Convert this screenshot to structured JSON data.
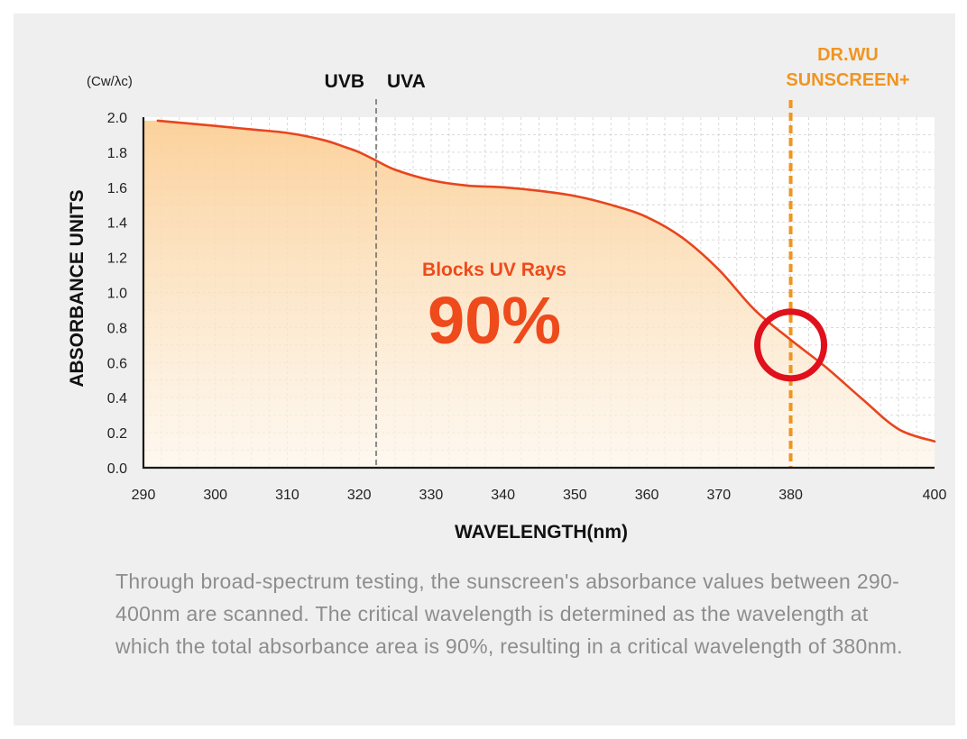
{
  "chart_data": {
    "type": "area",
    "unit_label": "(Cw/λc)",
    "ylabel": "ABSORBANCE UNITS",
    "xlabel": "WAVELENGTH(nm)",
    "xlim": [
      290,
      400
    ],
    "ylim": [
      0,
      2.0
    ],
    "x_ticks": [
      "290",
      "300",
      "310",
      "320",
      "330",
      "340",
      "350",
      "360",
      "370",
      "380",
      "400"
    ],
    "x_tick_values": [
      290,
      300,
      310,
      320,
      330,
      340,
      350,
      360,
      370,
      380,
      400
    ],
    "y_ticks": [
      "0.0",
      "0.2",
      "0.4",
      "0.6",
      "0.8",
      "1.0",
      "1.2",
      "1.4",
      "1.6",
      "1.8",
      "2.0"
    ],
    "y_tick_values": [
      0,
      0.2,
      0.4,
      0.6,
      0.8,
      1.0,
      1.2,
      1.4,
      1.6,
      1.8,
      2.0
    ],
    "grid": true,
    "series": [
      {
        "color": "#e8451e",
        "x": [
          292,
          300,
          305,
          310,
          315,
          318,
          320,
          322,
          325,
          330,
          335,
          340,
          345,
          350,
          355,
          360,
          365,
          370,
          375,
          380,
          385,
          390,
          395,
          400
        ],
        "y": [
          1.98,
          1.95,
          1.93,
          1.91,
          1.87,
          1.83,
          1.8,
          1.76,
          1.7,
          1.64,
          1.61,
          1.6,
          1.58,
          1.55,
          1.5,
          1.43,
          1.31,
          1.13,
          0.9,
          0.73,
          0.57,
          0.39,
          0.22,
          0.15
        ]
      }
    ],
    "region_divider": {
      "x": 320,
      "left_label": "UVB",
      "right_label": "UVA"
    },
    "critical_line": {
      "x": 380,
      "label_line1": "DR.WU",
      "label_line2": "SUNSCREEN+",
      "color": "#f0951f"
    },
    "highlight_circle": {
      "x": 380,
      "y": 0.7,
      "color": "#e0101c"
    },
    "annotation": {
      "title": "Blocks UV Rays",
      "value": "90%",
      "color": "#ee4a1c"
    },
    "fill_color_top": "#fbcf96",
    "fill_color_bottom": "#fdf5ea"
  },
  "caption": "Through broad-spectrum testing, the sunscreen's absorbance values between 290-400nm are scanned. The critical wavelength is determined as the wavelength at which the total absorbance area is 90%, resulting in a critical wavelength of 380nm."
}
